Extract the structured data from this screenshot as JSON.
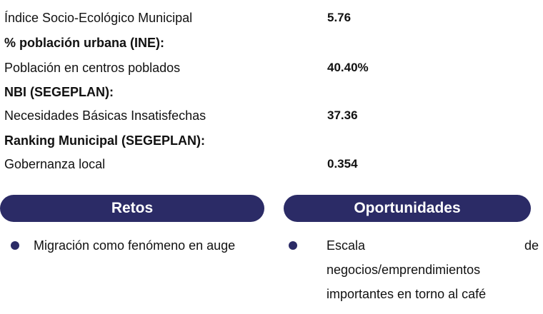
{
  "indicators": {
    "row1": {
      "label": "Índice Socio-Ecológico Municipal",
      "value": "5.76"
    },
    "heading2": "% población urbana (INE):",
    "row2": {
      "label": "Población en centros poblados",
      "value": "40.40%"
    },
    "heading3": "NBI (SEGEPLAN):",
    "row3": {
      "label": "Necesidades Básicas Insatisfechas",
      "value": "37.36"
    },
    "heading4": "Ranking Municipal (SEGEPLAN):",
    "row4": {
      "label": "Gobernanza local",
      "value": "0.354"
    }
  },
  "retos": {
    "title": "Retos",
    "items": [
      "Migración como fenómeno en auge"
    ]
  },
  "oportunidades": {
    "title": "Oportunidades",
    "item1": {
      "line1_word1": "Escala",
      "line1_word2": "de",
      "line2": "negocios/emprendimientos",
      "line3": "importantes en torno al café"
    }
  },
  "colors": {
    "accent": "#2b2b66"
  }
}
